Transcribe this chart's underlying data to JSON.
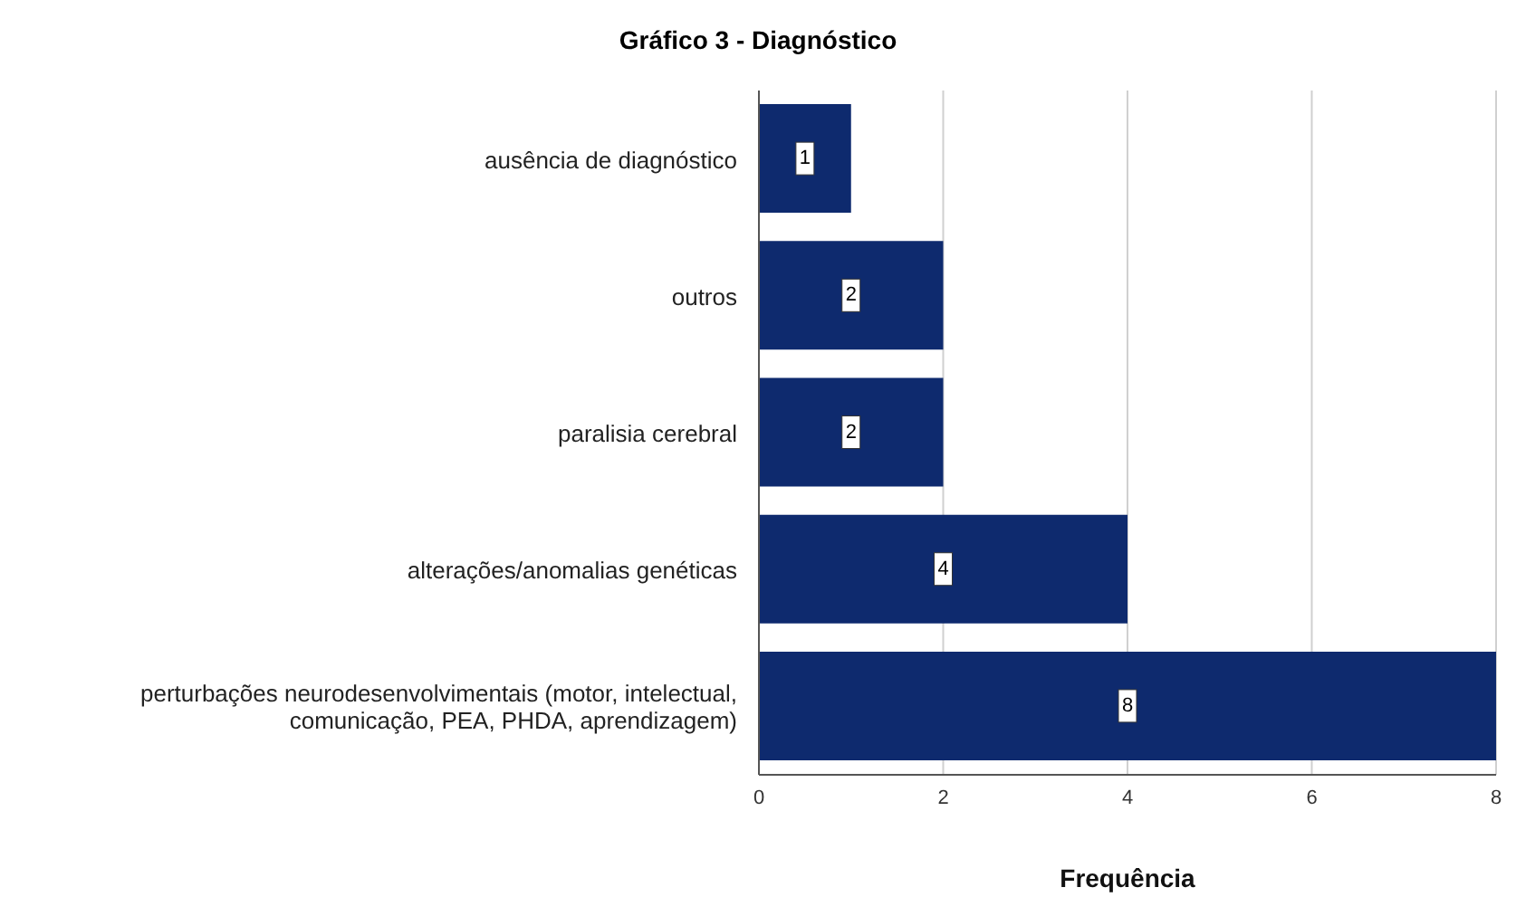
{
  "chart_data": {
    "type": "bar",
    "orientation": "horizontal",
    "title": "Gráfico 3 - Diagnóstico",
    "xlabel": "Frequência",
    "categories": [
      "ausência de diagnóstico",
      "outros",
      "paralisia cerebral",
      "alterações/anomalias genéticas",
      "perturbações neurodesenvolvimentais (motor, intelectual, comunicação, PEA, PHDA, aprendizagem)"
    ],
    "values": [
      1,
      2,
      2,
      4,
      8
    ],
    "color": "#0e2a6e",
    "xlim": [
      0,
      8
    ],
    "xticks": [
      0,
      2,
      4,
      6,
      8
    ],
    "grid": "x",
    "data_labels": true
  }
}
